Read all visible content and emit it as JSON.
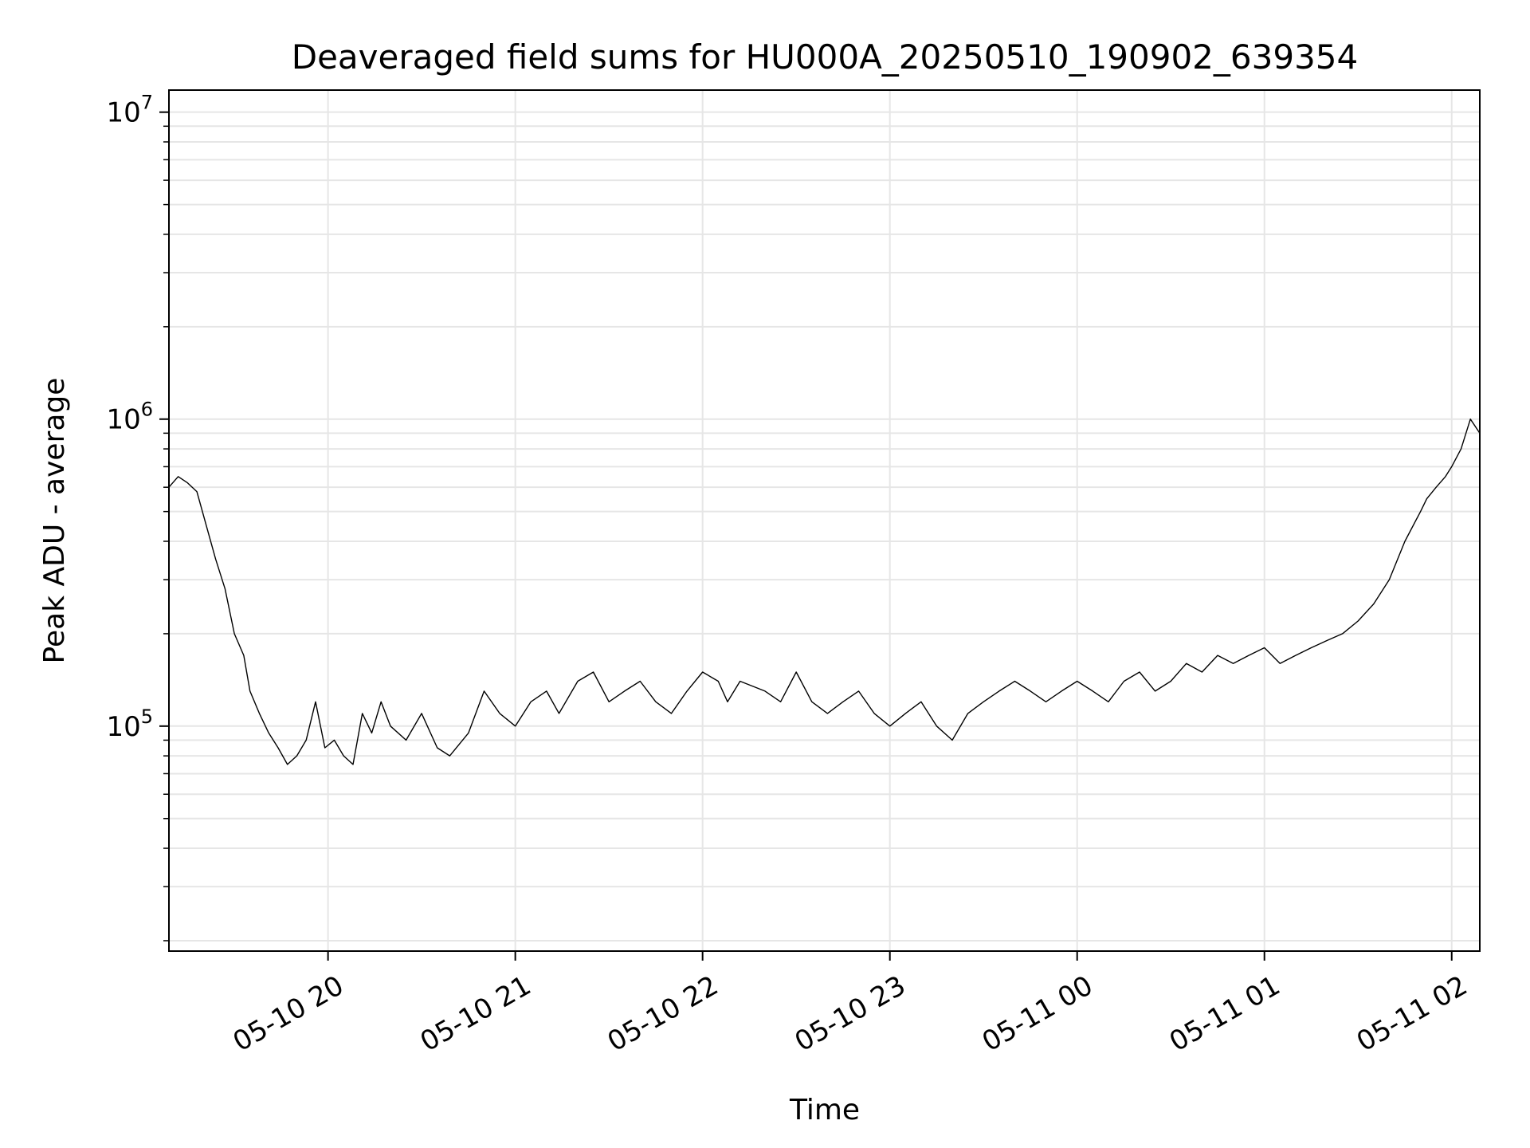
{
  "chart_data": {
    "type": "line",
    "title": "Deaveraged field sums for HU000A_20250510_190902_639354",
    "xlabel": "Time",
    "ylabel": "Peak ADU - average",
    "yscale": "log",
    "xlim": [
      "2025-05-10 19:09:02",
      "2025-05-11 02:09:00"
    ],
    "ylim": [
      18500,
      11800000
    ],
    "grid": true,
    "line_color": "#000000",
    "x_ticks": [
      {
        "label": "05-10 20",
        "time": "2025-05-10 20:00"
      },
      {
        "label": "05-10 21",
        "time": "2025-05-10 21:00"
      },
      {
        "label": "05-10 22",
        "time": "2025-05-10 22:00"
      },
      {
        "label": "05-10 23",
        "time": "2025-05-10 23:00"
      },
      {
        "label": "05-11 00",
        "time": "2025-05-11 00:00"
      },
      {
        "label": "05-11 01",
        "time": "2025-05-11 01:00"
      },
      {
        "label": "05-11 02",
        "time": "2025-05-11 02:00"
      }
    ],
    "y_ticks": [
      {
        "base": "10",
        "exp": "5",
        "value": 100000
      },
      {
        "base": "10",
        "exp": "6",
        "value": 1000000
      },
      {
        "base": "10",
        "exp": "7",
        "value": 10000000
      }
    ],
    "series": [
      {
        "x": [
          "2025-05-10 19:09",
          "2025-05-10 19:12",
          "2025-05-10 19:15",
          "2025-05-10 19:18",
          "2025-05-10 19:21",
          "2025-05-10 19:24",
          "2025-05-10 19:27",
          "2025-05-10 19:30",
          "2025-05-10 19:33",
          "2025-05-10 19:35",
          "2025-05-10 19:38",
          "2025-05-10 19:41",
          "2025-05-10 19:44",
          "2025-05-10 19:47",
          "2025-05-10 19:50",
          "2025-05-10 19:53",
          "2025-05-10 19:56",
          "2025-05-10 19:59",
          "2025-05-10 20:02",
          "2025-05-10 20:05",
          "2025-05-10 20:08",
          "2025-05-10 20:11",
          "2025-05-10 20:14",
          "2025-05-10 20:17",
          "2025-05-10 20:20",
          "2025-05-10 20:25",
          "2025-05-10 20:30",
          "2025-05-10 20:35",
          "2025-05-10 20:39",
          "2025-05-10 20:45",
          "2025-05-10 20:50",
          "2025-05-10 20:55",
          "2025-05-10 21:00",
          "2025-05-10 21:05",
          "2025-05-10 21:10",
          "2025-05-10 21:14",
          "2025-05-10 21:20",
          "2025-05-10 21:25",
          "2025-05-10 21:30",
          "2025-05-10 21:35",
          "2025-05-10 21:40",
          "2025-05-10 21:45",
          "2025-05-10 21:50",
          "2025-05-10 21:55",
          "2025-05-10 22:00",
          "2025-05-10 22:05",
          "2025-05-10 22:08",
          "2025-05-10 22:12",
          "2025-05-10 22:20",
          "2025-05-10 22:25",
          "2025-05-10 22:30",
          "2025-05-10 22:35",
          "2025-05-10 22:40",
          "2025-05-10 22:45",
          "2025-05-10 22:50",
          "2025-05-10 22:55",
          "2025-05-10 23:00",
          "2025-05-10 23:05",
          "2025-05-10 23:10",
          "2025-05-10 23:15",
          "2025-05-10 23:20",
          "2025-05-10 23:25",
          "2025-05-10 23:30",
          "2025-05-10 23:35",
          "2025-05-10 23:40",
          "2025-05-10 23:45",
          "2025-05-10 23:50",
          "2025-05-10 23:55",
          "2025-05-11 00:00",
          "2025-05-11 00:05",
          "2025-05-11 00:10",
          "2025-05-11 00:15",
          "2025-05-11 00:20",
          "2025-05-11 00:25",
          "2025-05-11 00:30",
          "2025-05-11 00:35",
          "2025-05-11 00:40",
          "2025-05-11 00:45",
          "2025-05-11 00:50",
          "2025-05-11 00:55",
          "2025-05-11 01:00",
          "2025-05-11 01:05",
          "2025-05-11 01:10",
          "2025-05-11 01:15",
          "2025-05-11 01:20",
          "2025-05-11 01:25",
          "2025-05-11 01:30",
          "2025-05-11 01:35",
          "2025-05-11 01:40",
          "2025-05-11 01:45",
          "2025-05-11 01:50",
          "2025-05-11 01:52",
          "2025-05-11 01:55",
          "2025-05-11 01:58",
          "2025-05-11 02:00",
          "2025-05-11 02:03",
          "2025-05-11 02:06",
          "2025-05-11 02:09"
        ],
        "y": [
          600000,
          650000,
          620000,
          580000,
          450000,
          350000,
          280000,
          200000,
          170000,
          130000,
          110000,
          95000,
          85000,
          75000,
          80000,
          90000,
          120000,
          85000,
          90000,
          80000,
          75000,
          110000,
          95000,
          120000,
          100000,
          90000,
          110000,
          85000,
          80000,
          95000,
          130000,
          110000,
          100000,
          120000,
          130000,
          110000,
          140000,
          150000,
          120000,
          130000,
          140000,
          120000,
          110000,
          130000,
          150000,
          140000,
          120000,
          140000,
          130000,
          120000,
          150000,
          120000,
          110000,
          120000,
          130000,
          110000,
          100000,
          110000,
          120000,
          100000,
          90000,
          110000,
          120000,
          130000,
          140000,
          130000,
          120000,
          130000,
          140000,
          130000,
          120000,
          140000,
          150000,
          130000,
          140000,
          160000,
          150000,
          170000,
          160000,
          170000,
          180000,
          160000,
          170000,
          180000,
          190000,
          200000,
          220000,
          250000,
          300000,
          400000,
          500000,
          550000,
          600000,
          650000,
          700000,
          800000,
          1000000,
          900000
        ]
      }
    ]
  }
}
